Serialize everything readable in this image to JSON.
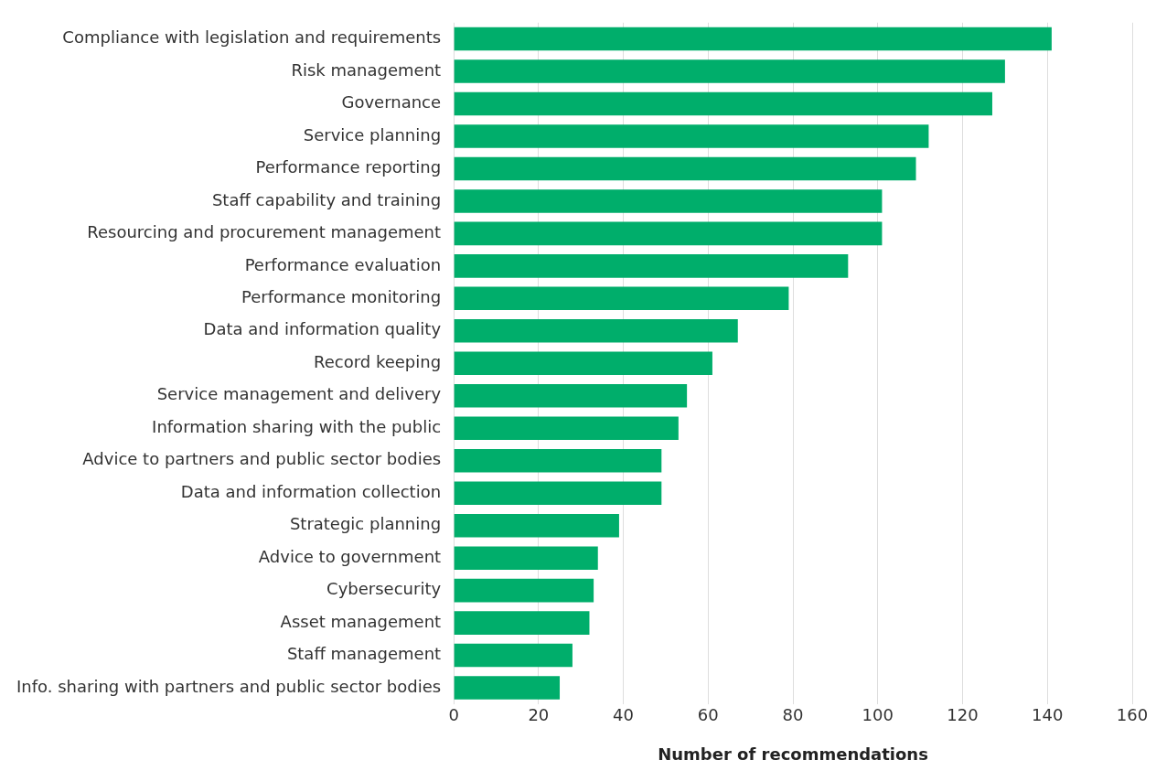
{
  "chart_data": {
    "type": "bar",
    "orientation": "horizontal",
    "xlabel": "Number of recommendations",
    "categories": [
      "Compliance with legislation and requirements",
      "Risk management",
      "Governance",
      "Service planning",
      "Performance reporting",
      "Staff capability and training",
      "Resourcing and procurement management",
      "Performance evaluation",
      "Performance monitoring",
      "Data and information quality",
      "Record keeping",
      "Service management and delivery",
      "Information sharing with the public",
      "Advice to partners and public sector bodies",
      "Data and information collection",
      "Strategic planning",
      "Advice to government",
      "Cybersecurity",
      "Asset management",
      "Staff management",
      "Info. sharing with partners and public sector bodies"
    ],
    "values": [
      141,
      130,
      127,
      112,
      109,
      101,
      101,
      93,
      79,
      67,
      61,
      55,
      53,
      49,
      49,
      39,
      34,
      33,
      32,
      28,
      25
    ],
    "color": "#00ae6b",
    "xlim": [
      0,
      160
    ],
    "xticks": [
      0,
      20,
      40,
      60,
      80,
      100,
      120,
      140,
      160
    ],
    "grid": "x"
  }
}
